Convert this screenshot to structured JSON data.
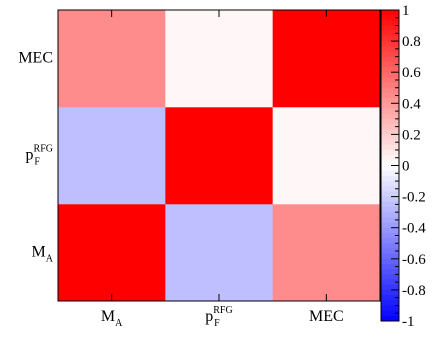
{
  "chart_data": {
    "type": "heatmap",
    "title": "",
    "x_categories": [
      {
        "main": "M",
        "sub": "A",
        "sup": ""
      },
      {
        "main": "p",
        "sub": "F",
        "sup": "RFG"
      },
      {
        "main": "MEC",
        "sub": "",
        "sup": ""
      }
    ],
    "y_categories": [
      {
        "main": "M",
        "sub": "A",
        "sup": ""
      },
      {
        "main": "p",
        "sub": "F",
        "sup": "RFG"
      },
      {
        "main": "MEC",
        "sub": "",
        "sup": ""
      }
    ],
    "matrix": [
      [
        1.0,
        -0.25,
        0.45
      ],
      [
        -0.25,
        1.0,
        0.03
      ],
      [
        0.45,
        0.03,
        1.0
      ]
    ],
    "colorbar": {
      "range": [
        -1,
        1
      ],
      "ticks": [
        "1",
        "0.8",
        "0.6",
        "0.4",
        "0.2",
        "0",
        "-0.2",
        "-0.4",
        "-0.6",
        "-0.8",
        "-1"
      ],
      "colors": {
        "negative": "#0000ff",
        "zero": "#ffffff",
        "positive": "#ff0000"
      }
    }
  }
}
